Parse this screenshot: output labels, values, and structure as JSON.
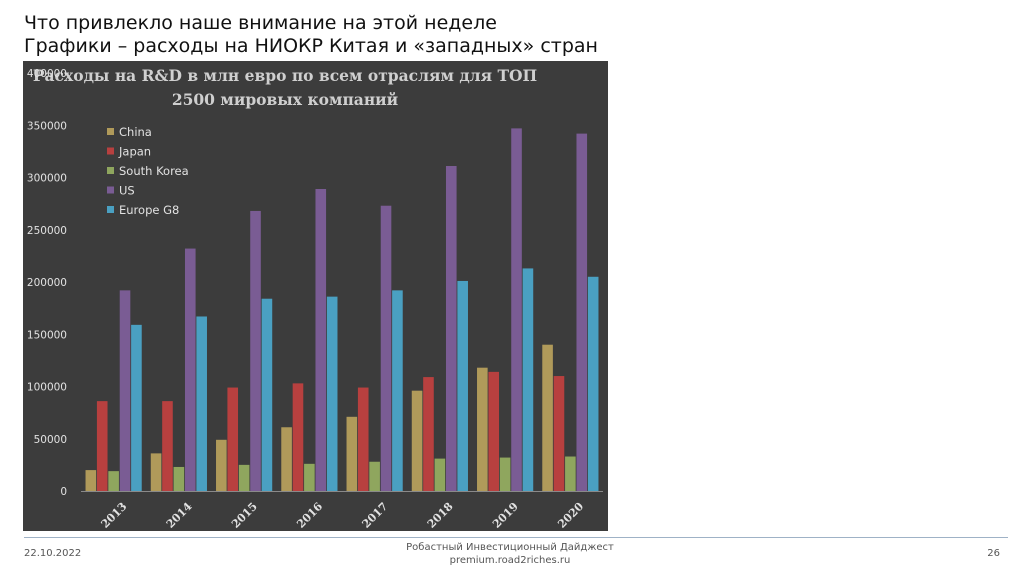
{
  "slide": {
    "title_line1": "Что привлекло наше внимание на этой неделе",
    "title_line2": "Графики – расходы на НИОКР Китая и «западных» стран"
  },
  "footer": {
    "date": "22.10.2022",
    "center_line1": "Робастный Инвестиционный Дайджест",
    "center_line2": "premium.road2riches.ru",
    "page": "26"
  },
  "chart_data": {
    "type": "bar",
    "title_lines": [
      "Расходы на R&D в млн евро по всем отраслям для ТОП",
      "2500 мировых компаний"
    ],
    "categories": [
      "2013",
      "2014",
      "2015",
      "2016",
      "2017",
      "2018",
      "2019",
      "2020"
    ],
    "series": [
      {
        "name": "China",
        "color": "#b09a5a",
        "values": [
          20000,
          36000,
          49000,
          61000,
          71000,
          96000,
          118000,
          140000
        ]
      },
      {
        "name": "Japan",
        "color": "#b8403f",
        "values": [
          86000,
          86000,
          99000,
          103000,
          99000,
          109000,
          114000,
          110000
        ]
      },
      {
        "name": "South Korea",
        "color": "#8fa65e",
        "values": [
          19000,
          23000,
          25000,
          26000,
          28000,
          31000,
          32000,
          33000
        ]
      },
      {
        "name": "US",
        "color": "#7a5c94",
        "values": [
          192000,
          232000,
          268000,
          289000,
          273000,
          311000,
          347000,
          342000
        ]
      },
      {
        "name": "Europe G8",
        "color": "#4aa0c2",
        "values": [
          159000,
          167000,
          184000,
          186000,
          192000,
          201000,
          213000,
          205000
        ]
      }
    ],
    "yticks": [
      "0",
      "50000",
      "100000",
      "150000",
      "200000",
      "250000",
      "300000",
      "350000",
      "400000"
    ],
    "ylim": [
      0,
      400000
    ],
    "legend": "top-left",
    "grid": false
  }
}
